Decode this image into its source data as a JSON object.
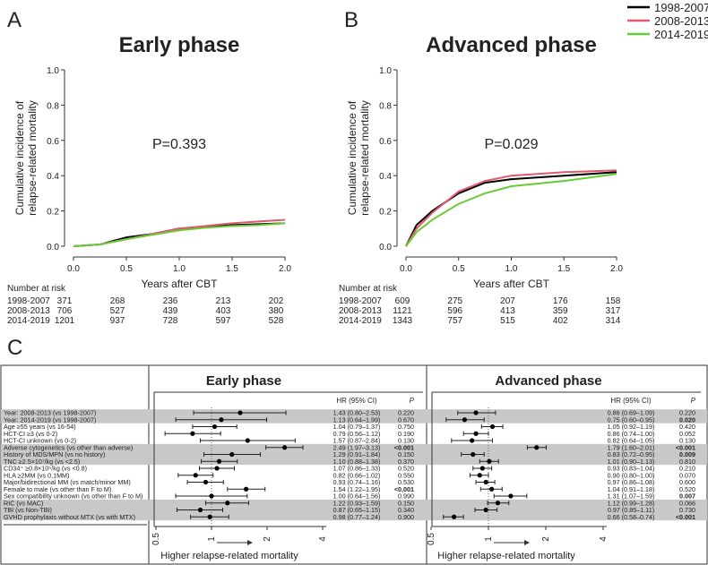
{
  "legend": {
    "entries": [
      "1998-2007",
      "2008-2013",
      "2014-2019"
    ],
    "colors": [
      "#000000",
      "#e05a6e",
      "#66cc33"
    ]
  },
  "chart_data": [
    {
      "type": "line",
      "panel": "A",
      "title": "Early phase",
      "pvalue": "P=0.393",
      "xlabel": "Years after CBT",
      "ylabel": "Cumulative incidence of\nrelapse-related mortality",
      "xlim": [
        0,
        2
      ],
      "ylim": [
        0,
        1
      ],
      "xticks": [
        "0.0",
        "0.5",
        "1.0",
        "1.5",
        "2.0"
      ],
      "yticks": [
        "0.0",
        "0.2",
        "0.4",
        "0.6",
        "0.8",
        "1.0"
      ],
      "series": [
        {
          "name": "1998-2007",
          "x": [
            0,
            0.25,
            0.5,
            0.75,
            1.0,
            1.25,
            1.5,
            1.75,
            2.0
          ],
          "y": [
            0,
            0.01,
            0.05,
            0.07,
            0.1,
            0.11,
            0.12,
            0.125,
            0.13
          ]
        },
        {
          "name": "2008-2013",
          "x": [
            0,
            0.25,
            0.5,
            0.75,
            1.0,
            1.25,
            1.5,
            1.75,
            2.0
          ],
          "y": [
            0,
            0.01,
            0.04,
            0.07,
            0.1,
            0.115,
            0.13,
            0.14,
            0.15
          ]
        },
        {
          "name": "2014-2019",
          "x": [
            0,
            0.25,
            0.5,
            0.75,
            1.0,
            1.25,
            1.5,
            1.75,
            2.0
          ],
          "y": [
            0,
            0.01,
            0.04,
            0.065,
            0.09,
            0.105,
            0.115,
            0.12,
            0.13
          ]
        }
      ],
      "risk_title": "Number at risk",
      "risk": [
        [
          "1998-2007",
          "371",
          "268",
          "236",
          "213",
          "202"
        ],
        [
          "2008-2013",
          "706",
          "527",
          "439",
          "403",
          "380"
        ],
        [
          "2014-2019",
          "1201",
          "937",
          "728",
          "597",
          "528"
        ]
      ]
    },
    {
      "type": "line",
      "panel": "B",
      "title": "Advanced phase",
      "pvalue": "P=0.029",
      "xlabel": "Years after CBT",
      "ylabel": "Cumulative incidence of\nrelapse-related mortality",
      "xlim": [
        0,
        2
      ],
      "ylim": [
        0,
        1
      ],
      "xticks": [
        "0.0",
        "0.5",
        "1.0",
        "1.5",
        "2.0"
      ],
      "yticks": [
        "0.0",
        "0.2",
        "0.4",
        "0.6",
        "0.8",
        "1.0"
      ],
      "series": [
        {
          "name": "1998-2007",
          "x": [
            0,
            0.1,
            0.25,
            0.5,
            0.75,
            1.0,
            1.5,
            2.0
          ],
          "y": [
            0,
            0.12,
            0.2,
            0.3,
            0.36,
            0.38,
            0.4,
            0.42
          ]
        },
        {
          "name": "2008-2013",
          "x": [
            0,
            0.1,
            0.25,
            0.5,
            0.75,
            1.0,
            1.5,
            2.0
          ],
          "y": [
            0,
            0.1,
            0.19,
            0.31,
            0.37,
            0.4,
            0.42,
            0.43
          ]
        },
        {
          "name": "2014-2019",
          "x": [
            0,
            0.1,
            0.25,
            0.5,
            0.75,
            1.0,
            1.5,
            2.0
          ],
          "y": [
            0,
            0.08,
            0.15,
            0.24,
            0.3,
            0.34,
            0.37,
            0.41
          ]
        }
      ],
      "risk_title": "Number at risk",
      "risk": [
        [
          "1998-2007",
          "609",
          "275",
          "207",
          "176",
          "158"
        ],
        [
          "2008-2013",
          "1121",
          "596",
          "413",
          "359",
          "317"
        ],
        [
          "2014-2019",
          "1343",
          "757",
          "515",
          "402",
          "314"
        ]
      ]
    }
  ],
  "forest": {
    "panel": "C",
    "hr_header": "HR (95% CI)",
    "p_header": "P",
    "xticks": [
      "0.5",
      "1",
      "2",
      "4"
    ],
    "xlabel": "Higher relapse-related mortality",
    "shaded_rows": [
      0,
      1,
      5,
      6,
      7,
      13,
      14,
      15
    ],
    "labels": [
      "Year: 2008-2013 (vs 1998-2007)",
      "Year: 2014-2019 (vs 1998-2007)",
      "Age ≥55 years (vs 16-54)",
      "HCT-CI ≥3  (vs 0-2)",
      "HCT-CI unknown (vs 0-2)",
      "Adverse cytogenetics (vs other than adverse)",
      "History of MDS/MPN (vs no history)",
      "TNC ≥2.5×10⁷/kg (vs <2.5)",
      "CD34⁺ ≥0.8×10⁵/kg (vs <0.8)",
      "HLA ≥2MM (vs 0,1MM)",
      "Major/bidirectional MM (vs match/minor MM)",
      "Female to male (vs other than F to M)",
      "Sex compatibility unknown (vs other than F to M)",
      "RIC (vs MAC)",
      "TBI (vs Non-TBI)",
      "GVHD prophylaxis without MTX (vs with MTX)"
    ],
    "panels": [
      {
        "title": "Early phase",
        "hr": [
          1.43,
          1.13,
          1.04,
          0.79,
          1.57,
          2.49,
          1.29,
          1.1,
          1.07,
          0.82,
          0.93,
          1.54,
          1.0,
          1.22,
          0.87,
          0.98
        ],
        "lo": [
          0.8,
          0.64,
          0.79,
          0.56,
          0.87,
          1.97,
          0.91,
          0.88,
          0.86,
          0.66,
          0.74,
          1.22,
          0.64,
          0.93,
          0.65,
          0.77
        ],
        "hi": [
          2.53,
          1.99,
          1.37,
          1.12,
          2.84,
          3.13,
          1.84,
          1.38,
          1.33,
          1.02,
          1.16,
          1.95,
          1.56,
          1.59,
          1.15,
          1.24
        ],
        "ci_text": [
          "1.43 (0.80–2.53)",
          "1.13 (0.64–1.99)",
          "1.04 (0.79–1.37)",
          "0.79 (0.56–1.12)",
          "1.57 (0.87–2.84)",
          "2.49 (1.97–3.13)",
          "1.29 (0.91–1.84)",
          "1.10 (0.88–1.38)",
          "1.07 (0.86–1.33)",
          "0.82 (0.66–1.02)",
          "0.93 (0.74–1.16)",
          "1.54 (1.22–1.95)",
          "1.00 (0.64–1.56)",
          "1.22 (0.93–1.59)",
          "0.87 (0.65–1.15)",
          "0.98 (0.77–1.24)"
        ],
        "p": [
          "0.220",
          "0.670",
          "0.750",
          "0.190",
          "0.130",
          "<0.001",
          "0.150",
          "0.370",
          "0.520",
          "0.550",
          "0.530",
          "<0.001",
          "0.990",
          "0.150",
          "0.340",
          "0.900"
        ],
        "p_bold": [
          5,
          11
        ]
      },
      {
        "title": "Advanced phase",
        "hr": [
          0.86,
          0.75,
          1.05,
          0.86,
          0.82,
          1.79,
          0.83,
          1.01,
          0.93,
          0.9,
          0.97,
          1.04,
          1.31,
          1.12,
          0.97,
          0.66
        ],
        "lo": [
          0.69,
          0.6,
          0.92,
          0.74,
          0.64,
          1.6,
          0.72,
          0.9,
          0.83,
          0.8,
          0.86,
          0.91,
          1.07,
          0.99,
          0.85,
          0.58
        ],
        "hi": [
          1.09,
          0.95,
          1.19,
          1.0,
          1.05,
          2.01,
          0.95,
          1.13,
          1.04,
          1.0,
          1.08,
          1.18,
          1.59,
          1.28,
          1.11,
          0.74
        ],
        "ci_text": [
          "0.86 (0.69–1.09)",
          "0.75 (0.60–0.95)",
          "1.05 (0.92–1.19)",
          "0.86 (0.74–1.00)",
          "0.82 (0.64–1.05)",
          "1.79 (1.60–2.01)",
          "0.83 (0.72–0.95)",
          "1.01 (0.90–1.13)",
          "0.93 (0.83–1.04)",
          "0.90 (0.80–1.00)",
          "0.97 (0.86–1.08)",
          "1.04 (0.91–1.18)",
          "1.31 (1.07–1.59)",
          "1.12 (0.99–1.28)",
          "0.97 (0.85–1.11)",
          "0.66 (0.58–0.74)"
        ],
        "p": [
          "0.220",
          "0.020",
          "0.420",
          "0.052",
          "0.130",
          "<0.001",
          "0.009",
          "0.810",
          "0.210",
          "0.070",
          "0.600",
          "0.520",
          "0.007",
          "0.066",
          "0.730",
          "<0.001"
        ],
        "p_bold": [
          1,
          5,
          6,
          12,
          15
        ]
      }
    ]
  }
}
